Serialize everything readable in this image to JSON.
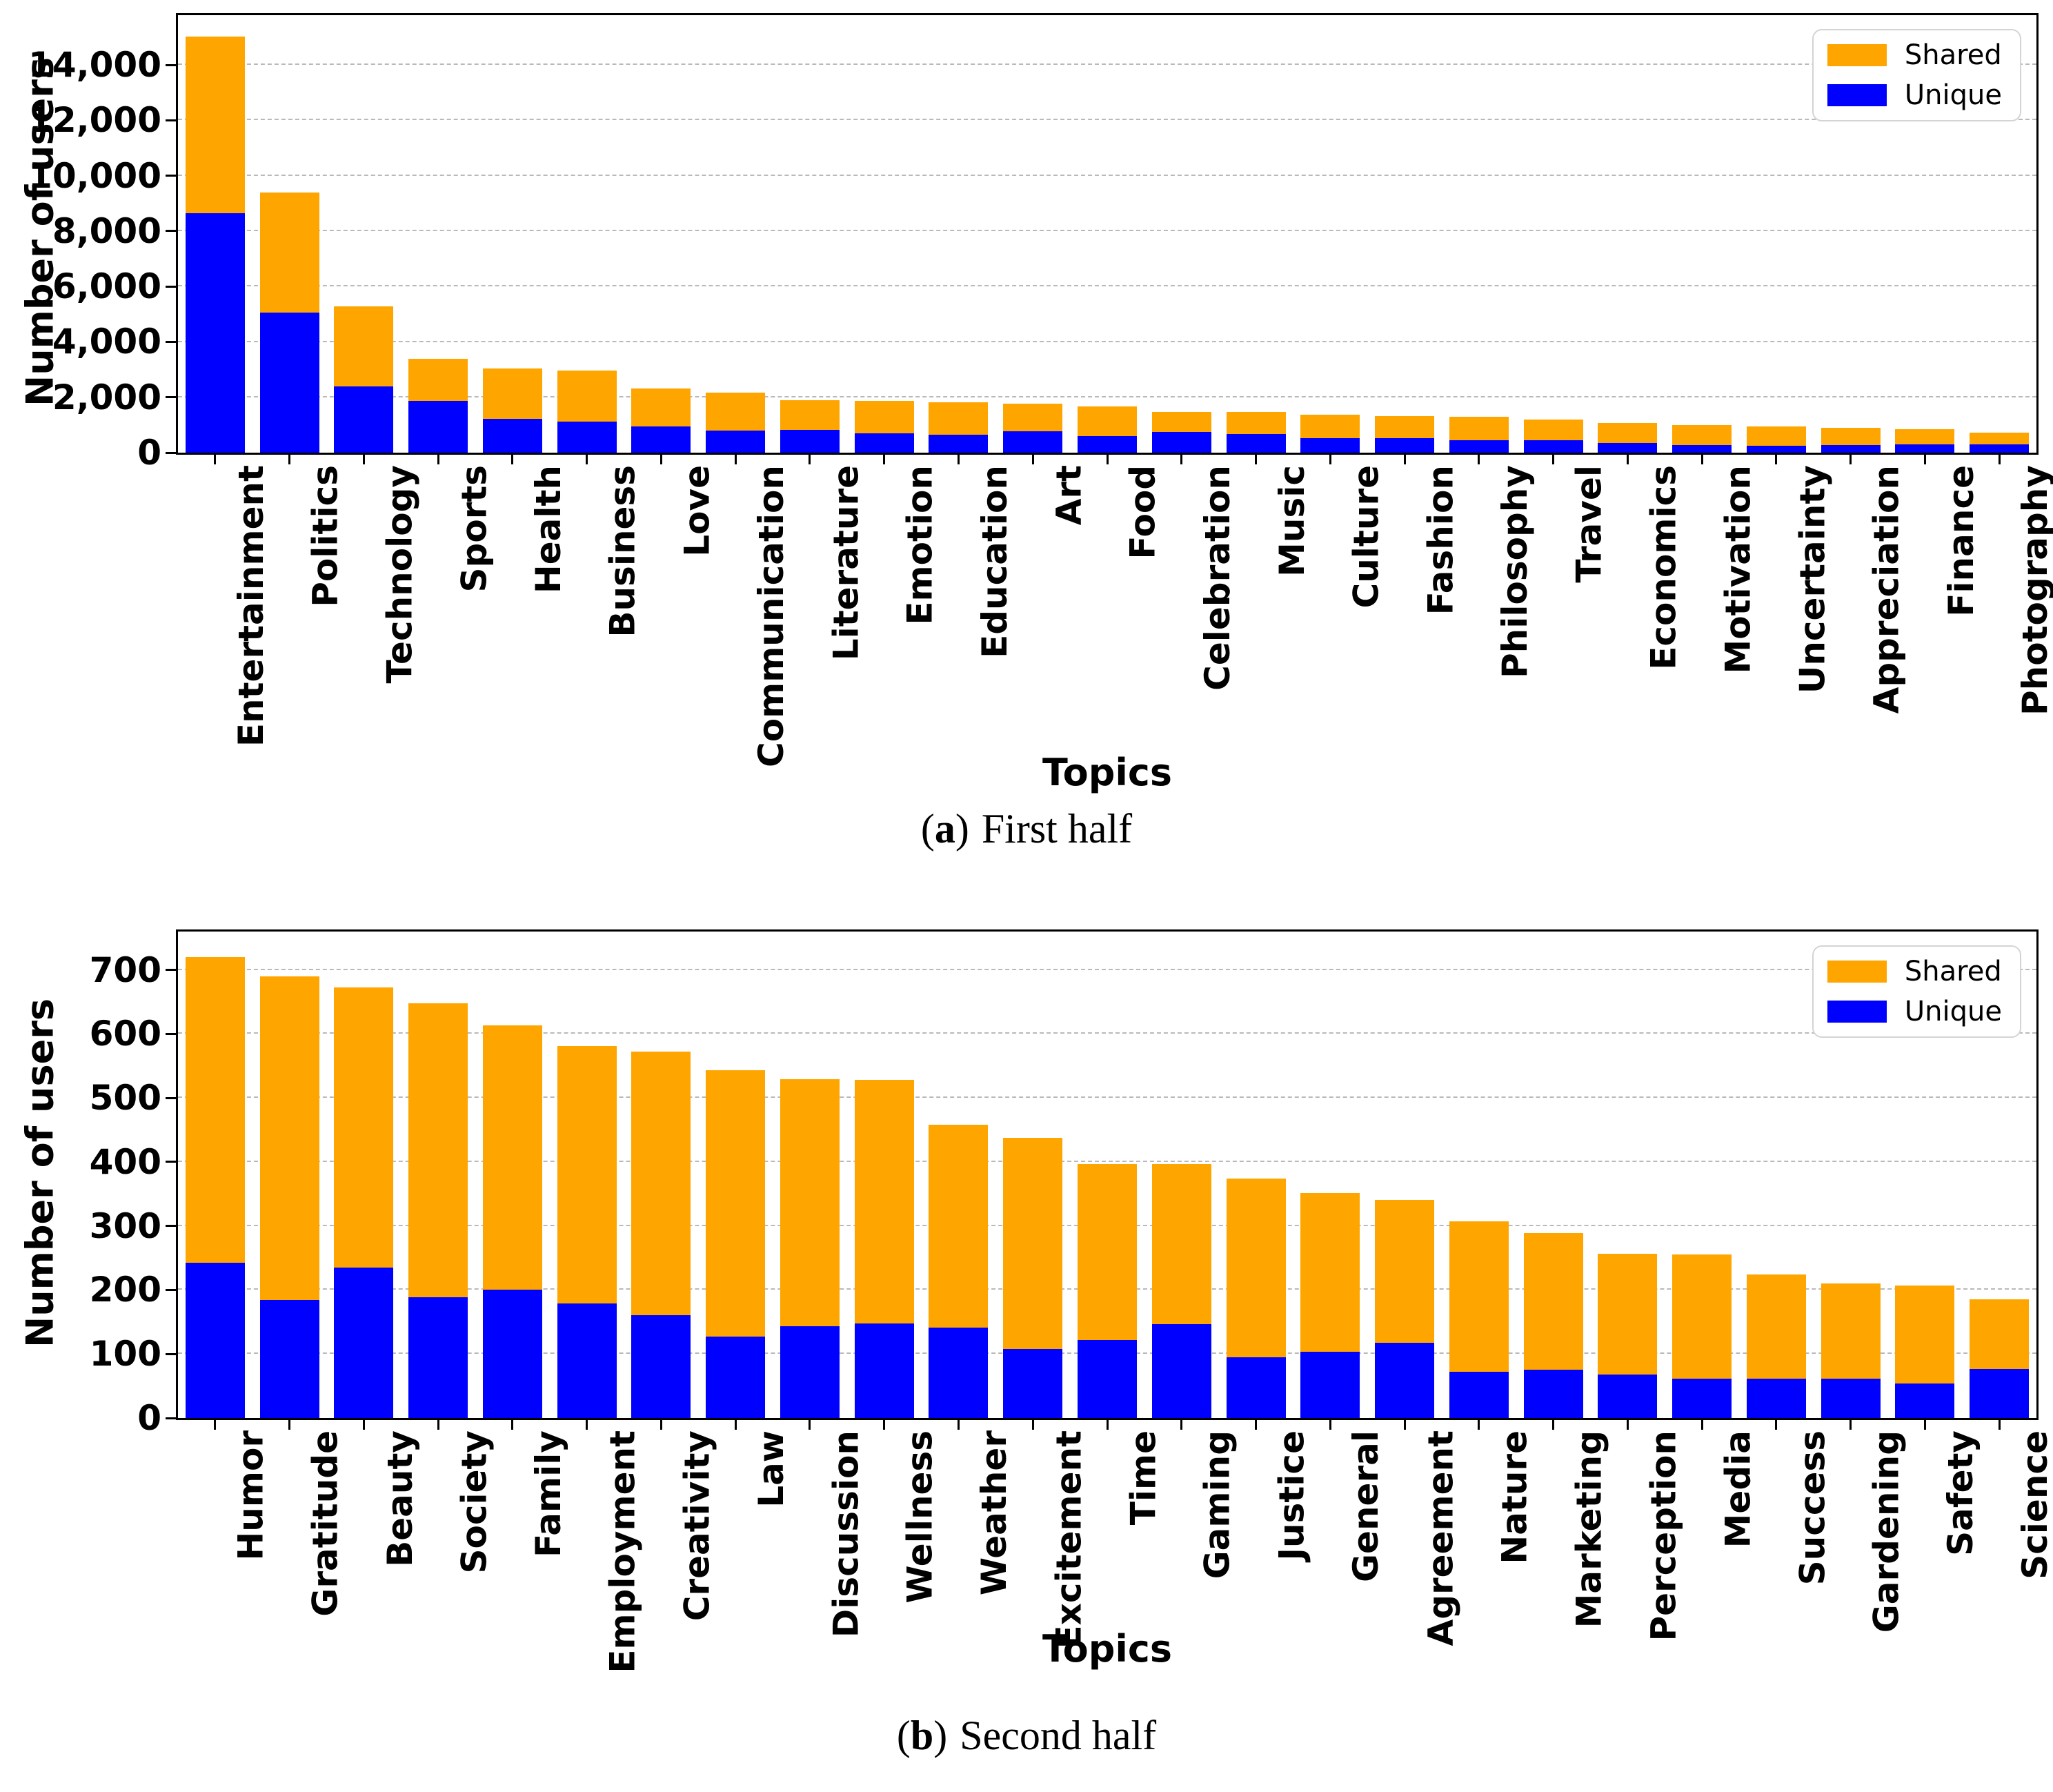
{
  "figure": {
    "colors": {
      "shared": "#FFA500",
      "unique": "#0000FF",
      "gridline": "#b9b9b9"
    },
    "legend": {
      "shared_label": "Shared",
      "unique_label": "Unique"
    }
  },
  "chart_data": [
    {
      "id": "a",
      "type": "bar",
      "stacked": true,
      "caption": {
        "open": "(",
        "letter": "a",
        "close": ")",
        "text": "First half"
      },
      "xlabel": "Topics",
      "ylabel": "Number of users",
      "ylim": [
        0,
        15800
      ],
      "ytick_step": 2000,
      "ytick_labels": [
        "0",
        "2,000",
        "4,000",
        "6,000",
        "8,000",
        "10,000",
        "12,000",
        "14,000"
      ],
      "grid": "horizontal dashed",
      "legend_position": "upper right",
      "categories": [
        "Entertainment",
        "Politics",
        "Technology",
        "Sports",
        "Health",
        "Business",
        "Love",
        "Communication",
        "Literature",
        "Emotion",
        "Education",
        "Art",
        "Food",
        "Celebration",
        "Music",
        "Culture",
        "Fashion",
        "Philosophy",
        "Travel",
        "Economics",
        "Motivation",
        "Uncertainty",
        "Appreciation",
        "Finance",
        "Photography"
      ],
      "series": [
        {
          "name": "Unique",
          "color": "#0000FF",
          "values": [
            8650,
            5050,
            2400,
            1860,
            1225,
            1125,
            950,
            800,
            820,
            700,
            640,
            770,
            600,
            745,
            680,
            530,
            530,
            445,
            445,
            360,
            275,
            250,
            275,
            310,
            310
          ]
        },
        {
          "name": "Shared",
          "color": "#FFA500",
          "values": [
            6370,
            4350,
            2880,
            1540,
            1825,
            1835,
            1370,
            1380,
            1080,
            1170,
            1180,
            1000,
            1070,
            715,
            780,
            850,
            790,
            855,
            745,
            720,
            725,
            690,
            625,
            550,
            415
          ]
        }
      ],
      "totals": [
        15020,
        9400,
        5280,
        3400,
        3050,
        2960,
        2320,
        2180,
        1900,
        1870,
        1820,
        1770,
        1670,
        1460,
        1460,
        1380,
        1320,
        1300,
        1190,
        1080,
        1000,
        940,
        900,
        860,
        725
      ]
    },
    {
      "id": "b",
      "type": "bar",
      "stacked": true,
      "caption": {
        "open": "(",
        "letter": "b",
        "close": ")",
        "text": "Second half"
      },
      "xlabel": "Topics",
      "ylabel": "Number of users",
      "ylim": [
        0,
        760
      ],
      "ytick_step": 100,
      "ytick_labels": [
        "0",
        "100",
        "200",
        "300",
        "400",
        "500",
        "600",
        "700"
      ],
      "grid": "horizontal dashed",
      "legend_position": "upper right",
      "categories": [
        "Humor",
        "Gratitude",
        "Beauty",
        "Society",
        "Family",
        "Employment",
        "Creativity",
        "Law",
        "Discussion",
        "Wellness",
        "Weather",
        "Excitement",
        "Time",
        "Gaming",
        "Justice",
        "General",
        "Agreement",
        "Nature",
        "Marketing",
        "Perception",
        "Media",
        "Success",
        "Gardening",
        "Safety",
        "Science"
      ],
      "series": [
        {
          "name": "Unique",
          "color": "#0000FF",
          "values": [
            243,
            184,
            235,
            189,
            200,
            179,
            161,
            127,
            143,
            148,
            141,
            108,
            122,
            147,
            95,
            103,
            117,
            72,
            75,
            68,
            62,
            62,
            62,
            54,
            77
          ]
        },
        {
          "name": "Shared",
          "color": "#FFA500",
          "values": [
            477,
            506,
            438,
            459,
            413,
            402,
            411,
            416,
            386,
            380,
            317,
            330,
            275,
            250,
            279,
            249,
            224,
            235,
            214,
            189,
            194,
            162,
            148,
            153,
            108
          ]
        }
      ],
      "totals": [
        720,
        690,
        673,
        648,
        613,
        581,
        572,
        543,
        529,
        528,
        458,
        438,
        397,
        397,
        374,
        352,
        341,
        307,
        289,
        257,
        256,
        224,
        210,
        207,
        185
      ]
    }
  ]
}
